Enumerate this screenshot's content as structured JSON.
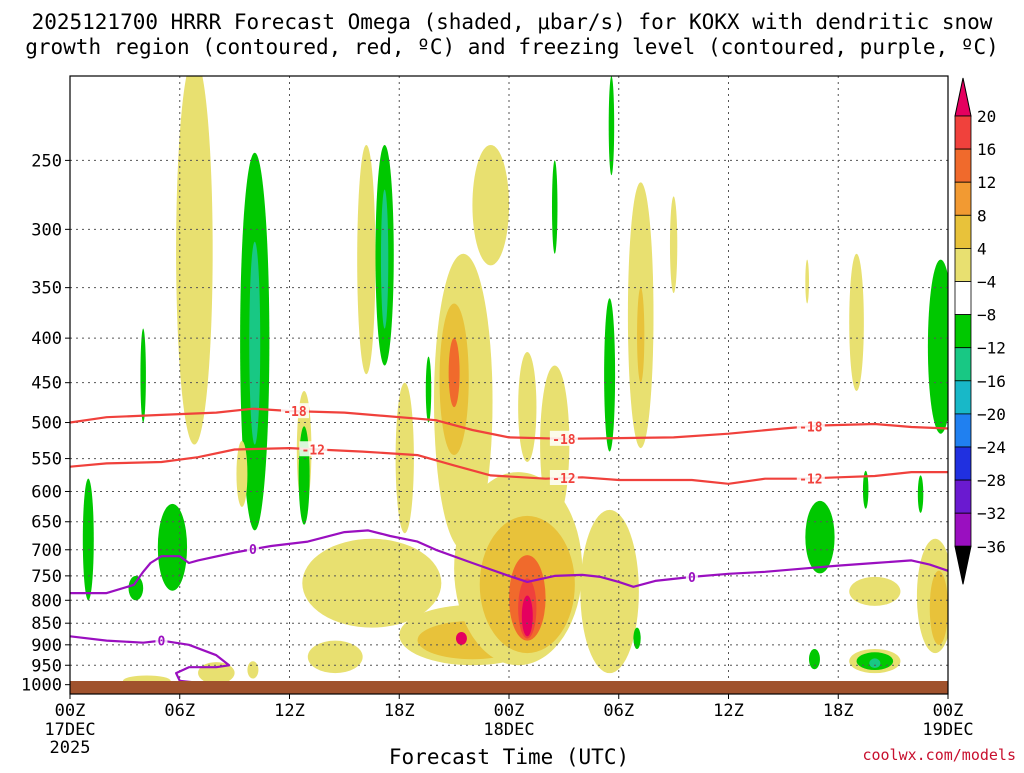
{
  "chart_data": {
    "type": "heatmap",
    "title_line1": "2025121700 HRRR Forecast Omega (shaded, μbar/s) for KOKX with dendritic snow",
    "title_line2": "growth region (contoured, red, ºC) and freezing level (contoured, purple, ºC)",
    "xlabel": "Forecast Time (UTC)",
    "ylabel": "",
    "credit": "coolwx.com/models",
    "x_ticks": [
      {
        "hour": 0,
        "label": "00Z",
        "sub1": "17DEC",
        "sub2": "2025"
      },
      {
        "hour": 6,
        "label": "06Z"
      },
      {
        "hour": 12,
        "label": "12Z"
      },
      {
        "hour": 18,
        "label": "18Z"
      },
      {
        "hour": 24,
        "label": "00Z",
        "sub1": "18DEC"
      },
      {
        "hour": 30,
        "label": "06Z"
      },
      {
        "hour": 36,
        "label": "12Z"
      },
      {
        "hour": 42,
        "label": "18Z"
      },
      {
        "hour": 48,
        "label": "00Z",
        "sub1": "19DEC"
      }
    ],
    "xlim": [
      0,
      48
    ],
    "y_ticks": [
      250,
      300,
      350,
      400,
      450,
      500,
      550,
      600,
      650,
      700,
      750,
      800,
      850,
      900,
      950,
      1000
    ],
    "ylim_hpa": [
      200,
      1025
    ],
    "colorbar": {
      "labels": [
        "20",
        "16",
        "12",
        "8",
        "4",
        "−4",
        "−8",
        "−12",
        "−16",
        "−20",
        "−24",
        "−28",
        "−32",
        "−36"
      ],
      "bands": [
        {
          "color": "#e5005f"
        },
        {
          "color": "#f0413c"
        },
        {
          "color": "#f06a2c"
        },
        {
          "color": "#f29a32"
        },
        {
          "color": "#e8c23a"
        },
        {
          "color": "#e8e070"
        },
        {
          "color": "#ffffff"
        },
        {
          "color": "#00c800"
        },
        {
          "color": "#18c884"
        },
        {
          "color": "#18b8c8"
        },
        {
          "color": "#2080f0"
        },
        {
          "color": "#2030e0"
        },
        {
          "color": "#6a1ad0"
        },
        {
          "color": "#9a0fc0"
        },
        {
          "color": "#a8a8a8"
        }
      ]
    },
    "omega_cells": [
      {
        "hour": 1.0,
        "p": 690,
        "rx": 0.3,
        "rp": 110,
        "value": -8
      },
      {
        "hour": 4.0,
        "p": 445,
        "rx": 0.15,
        "rp": 55,
        "value": -8
      },
      {
        "hour": 5.6,
        "p": 700,
        "rx": 0.8,
        "rp": 80,
        "value": -8
      },
      {
        "hour": 3.6,
        "p": 775,
        "rx": 0.4,
        "rp": 25,
        "value": -8
      },
      {
        "hour": 6.8,
        "p": 360,
        "rx": 1.0,
        "rp": 170,
        "value": 4
      },
      {
        "hour": 10.1,
        "p": 455,
        "rx": 0.8,
        "rp": 210,
        "value": -8
      },
      {
        "hour": 10.1,
        "p": 420,
        "rx": 0.3,
        "rp": 110,
        "value": -12
      },
      {
        "hour": 9.4,
        "p": 575,
        "rx": 0.3,
        "rp": 50,
        "value": 4
      },
      {
        "hour": 4.2,
        "p": 990,
        "rx": 1.3,
        "rp": 14,
        "value": 4
      },
      {
        "hour": 8.0,
        "p": 970,
        "rx": 1.0,
        "rp": 28,
        "value": 4
      },
      {
        "hour": 10.0,
        "p": 962,
        "rx": 0.3,
        "rp": 22,
        "value": 4
      },
      {
        "hour": 12.8,
        "p": 545,
        "rx": 0.4,
        "rp": 85,
        "value": 4
      },
      {
        "hour": 12.8,
        "p": 580,
        "rx": 0.3,
        "rp": 75,
        "value": -8
      },
      {
        "hour": 16.2,
        "p": 340,
        "rx": 0.5,
        "rp": 100,
        "value": 4
      },
      {
        "hour": 17.2,
        "p": 335,
        "rx": 0.5,
        "rp": 95,
        "value": -8
      },
      {
        "hour": 17.2,
        "p": 330,
        "rx": 0.2,
        "rp": 60,
        "value": -12
      },
      {
        "hour": 18.3,
        "p": 560,
        "rx": 0.5,
        "rp": 110,
        "value": 4
      },
      {
        "hour": 16.5,
        "p": 770,
        "rx": 3.8,
        "rp": 90,
        "value": 4
      },
      {
        "hour": 14.5,
        "p": 930,
        "rx": 1.5,
        "rp": 40,
        "value": 4
      },
      {
        "hour": 21.5,
        "p": 510,
        "rx": 1.6,
        "rp": 190,
        "value": 4
      },
      {
        "hour": 21.0,
        "p": 455,
        "rx": 0.8,
        "rp": 90,
        "value": 8
      },
      {
        "hour": 21.0,
        "p": 440,
        "rx": 0.3,
        "rp": 40,
        "value": 12
      },
      {
        "hour": 22.0,
        "p": 880,
        "rx": 4.0,
        "rp": 70,
        "value": 4
      },
      {
        "hour": 22.0,
        "p": 890,
        "rx": 3.0,
        "rp": 45,
        "value": 8
      },
      {
        "hour": 21.4,
        "p": 885,
        "rx": 0.3,
        "rp": 15,
        "value": 20
      },
      {
        "hour": 23.0,
        "p": 285,
        "rx": 1.0,
        "rp": 45,
        "value": 4
      },
      {
        "hour": 24.5,
        "p": 760,
        "rx": 3.5,
        "rp": 190,
        "value": 4
      },
      {
        "hour": 25.0,
        "p": 780,
        "rx": 2.6,
        "rp": 140,
        "value": 8
      },
      {
        "hour": 25.0,
        "p": 800,
        "rx": 1.0,
        "rp": 90,
        "value": 12
      },
      {
        "hour": 25.0,
        "p": 820,
        "rx": 0.5,
        "rp": 65,
        "value": 16
      },
      {
        "hour": 25.0,
        "p": 835,
        "rx": 0.3,
        "rp": 45,
        "value": 20
      },
      {
        "hour": 26.5,
        "p": 540,
        "rx": 0.8,
        "rp": 110,
        "value": 4
      },
      {
        "hour": 26.5,
        "p": 285,
        "rx": 0.15,
        "rp": 35,
        "value": -8
      },
      {
        "hour": 25.0,
        "p": 485,
        "rx": 0.5,
        "rp": 70,
        "value": 4
      },
      {
        "hour": 19.6,
        "p": 460,
        "rx": 0.15,
        "rp": 40,
        "value": -8
      },
      {
        "hour": 29.6,
        "p": 230,
        "rx": 0.15,
        "rp": 30,
        "value": -8
      },
      {
        "hour": 29.5,
        "p": 450,
        "rx": 0.3,
        "rp": 90,
        "value": -8
      },
      {
        "hour": 29.5,
        "p": 800,
        "rx": 1.6,
        "rp": 170,
        "value": 4
      },
      {
        "hour": 31.2,
        "p": 400,
        "rx": 0.7,
        "rp": 135,
        "value": 4
      },
      {
        "hour": 31.2,
        "p": 400,
        "rx": 0.2,
        "rp": 50,
        "value": 8
      },
      {
        "hour": 33.0,
        "p": 315,
        "rx": 0.2,
        "rp": 40,
        "value": 4
      },
      {
        "hour": 31.0,
        "p": 885,
        "rx": 0.2,
        "rp": 25,
        "value": -8
      },
      {
        "hour": 40.7,
        "p": 935,
        "rx": 0.3,
        "rp": 25,
        "value": -8
      },
      {
        "hour": 43.0,
        "p": 390,
        "rx": 0.4,
        "rp": 70,
        "value": 4
      },
      {
        "hour": 40.3,
        "p": 345,
        "rx": 0.1,
        "rp": 20,
        "value": 4
      },
      {
        "hour": 41.0,
        "p": 680,
        "rx": 0.8,
        "rp": 65,
        "value": -8
      },
      {
        "hour": 43.5,
        "p": 598,
        "rx": 0.15,
        "rp": 30,
        "value": -8
      },
      {
        "hour": 46.5,
        "p": 605,
        "rx": 0.15,
        "rp": 30,
        "value": -8
      },
      {
        "hour": 47.6,
        "p": 420,
        "rx": 0.7,
        "rp": 95,
        "value": -8
      },
      {
        "hour": 44.0,
        "p": 782,
        "rx": 1.4,
        "rp": 30,
        "value": 4
      },
      {
        "hour": 44.0,
        "p": 940,
        "rx": 1.4,
        "rp": 30,
        "value": 4
      },
      {
        "hour": 44.0,
        "p": 940,
        "rx": 1.0,
        "rp": 22,
        "value": -8
      },
      {
        "hour": 44.0,
        "p": 945,
        "rx": 0.3,
        "rp": 12,
        "value": -12
      },
      {
        "hour": 47.3,
        "p": 800,
        "rx": 1.0,
        "rp": 120,
        "value": 4
      },
      {
        "hour": 47.5,
        "p": 820,
        "rx": 0.5,
        "rp": 80,
        "value": 8
      }
    ],
    "contours": [
      {
        "label": "-18",
        "color": "#f0413c",
        "label_hours": [
          12.3,
          27.0,
          40.5
        ],
        "points": [
          [
            0,
            500
          ],
          [
            2,
            493
          ],
          [
            5,
            490
          ],
          [
            8,
            487
          ],
          [
            10,
            482
          ],
          [
            12,
            485
          ],
          [
            15,
            487
          ],
          [
            20,
            497
          ],
          [
            22,
            510
          ],
          [
            24,
            520
          ],
          [
            27,
            522
          ],
          [
            30,
            521
          ],
          [
            33,
            520
          ],
          [
            36,
            515
          ],
          [
            39,
            508
          ],
          [
            41,
            504
          ],
          [
            44,
            502
          ],
          [
            46,
            506
          ],
          [
            48,
            508
          ]
        ]
      },
      {
        "label": "-12",
        "color": "#f0413c",
        "label_hours": [
          13.3,
          27.0,
          40.5
        ],
        "points": [
          [
            0,
            562
          ],
          [
            2,
            557
          ],
          [
            5,
            555
          ],
          [
            7,
            548
          ],
          [
            9,
            537
          ],
          [
            12,
            535
          ],
          [
            16,
            540
          ],
          [
            19,
            545
          ],
          [
            21,
            560
          ],
          [
            23,
            575
          ],
          [
            26,
            580
          ],
          [
            28,
            578
          ],
          [
            30,
            582
          ],
          [
            34,
            582
          ],
          [
            36,
            588
          ],
          [
            38,
            580
          ],
          [
            40,
            580
          ],
          [
            42,
            578
          ],
          [
            44,
            576
          ],
          [
            46,
            570
          ],
          [
            48,
            570
          ]
        ]
      },
      {
        "label": "0",
        "color": "#9a0fc0",
        "label_hours": [
          10.0,
          34.0
        ],
        "points": [
          [
            0,
            785
          ],
          [
            2,
            785
          ],
          [
            3.5,
            768
          ],
          [
            4,
            742
          ],
          [
            4.4,
            725
          ],
          [
            5,
            712
          ],
          [
            6,
            712
          ],
          [
            6.5,
            725
          ],
          [
            7,
            720
          ],
          [
            9,
            705
          ],
          [
            11,
            693
          ],
          [
            13,
            685
          ],
          [
            15,
            668
          ],
          [
            16.3,
            665
          ],
          [
            17.5,
            675
          ],
          [
            19,
            685
          ],
          [
            20,
            700
          ],
          [
            22,
            725
          ],
          [
            24,
            750
          ],
          [
            25,
            762
          ],
          [
            26.5,
            750
          ],
          [
            28,
            748
          ],
          [
            29,
            752
          ],
          [
            30,
            762
          ],
          [
            30.8,
            772
          ],
          [
            32,
            760
          ],
          [
            34,
            752
          ],
          [
            36,
            746
          ],
          [
            38,
            742
          ],
          [
            40,
            736
          ],
          [
            42,
            730
          ],
          [
            44,
            725
          ],
          [
            46,
            720
          ],
          [
            47,
            728
          ],
          [
            48,
            740
          ]
        ]
      },
      {
        "label": "0",
        "color": "#9a0fc0",
        "label_hours": [
          5.0
        ],
        "points": [
          [
            0,
            880
          ],
          [
            2,
            890
          ],
          [
            4,
            895
          ],
          [
            5,
            890
          ],
          [
            6.5,
            900
          ],
          [
            8,
            925
          ],
          [
            8.7,
            950
          ],
          [
            8,
            955
          ],
          [
            6.5,
            955
          ],
          [
            5.8,
            970
          ],
          [
            6,
            990
          ],
          [
            8,
            1000
          ],
          [
            9.2,
            1002
          ]
        ]
      }
    ],
    "ground_color": "#a0522d"
  }
}
